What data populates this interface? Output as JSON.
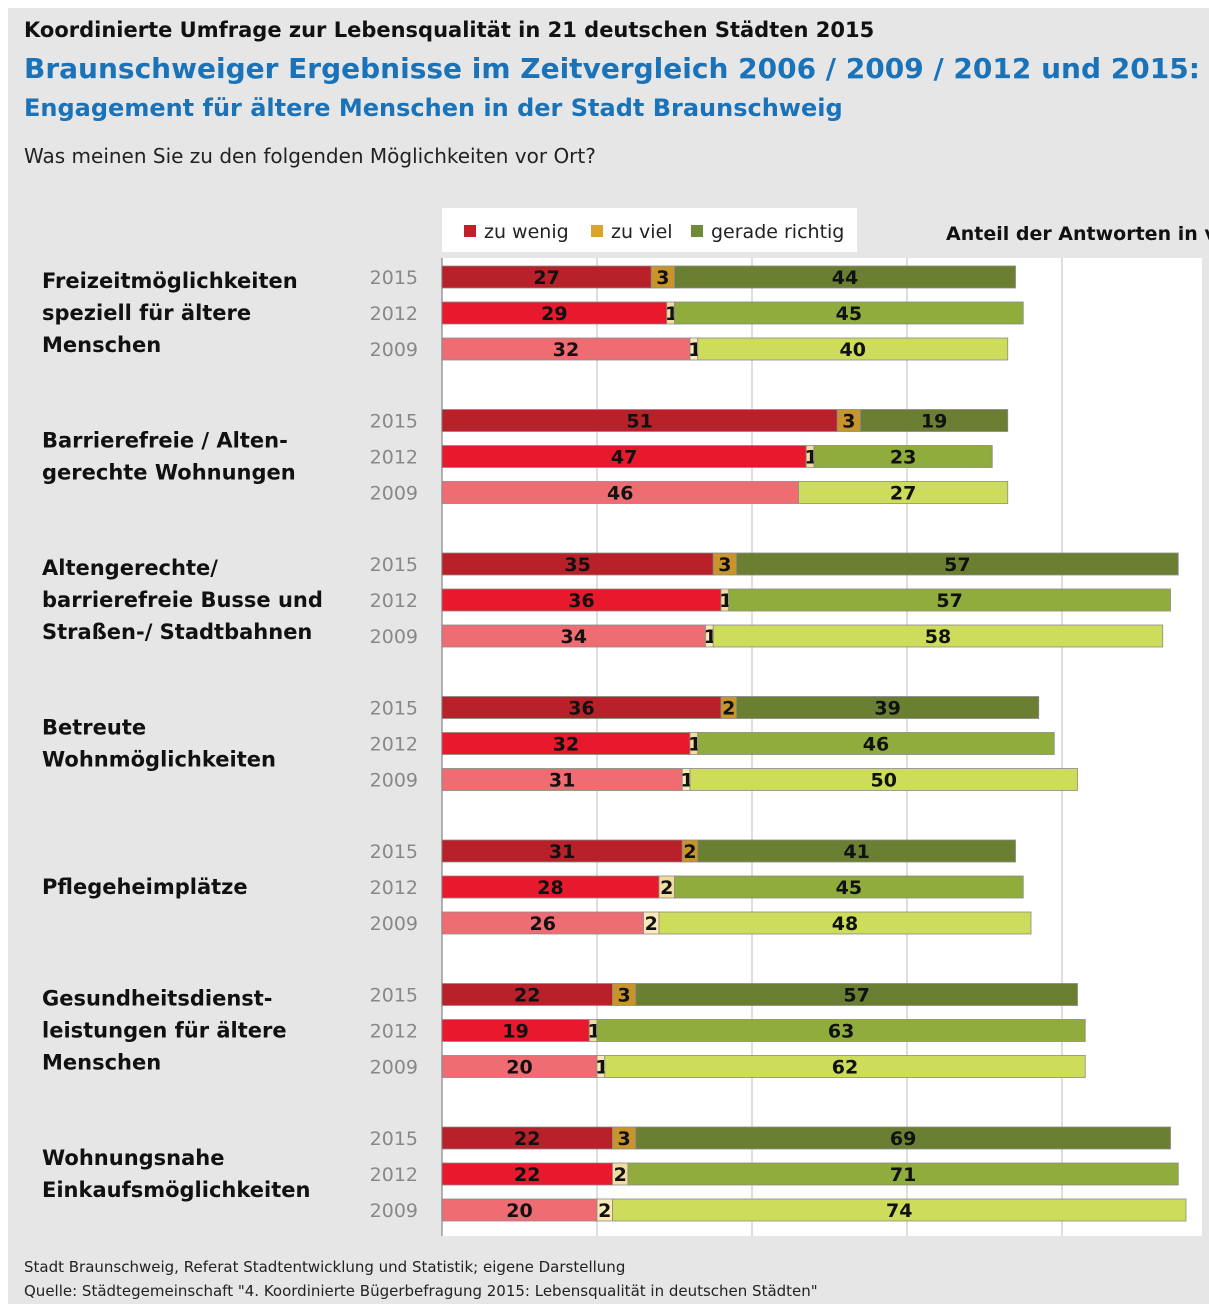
{
  "header": {
    "title": "Koordinierte Umfrage zur Lebensqualität in 21 deutschen Städten 2015",
    "subtitle": "Braunschweiger Ergebnisse im Zeitvergleich 2006 / 2009 / 2012 und 2015:",
    "subtitle2": "Engagement für ältere Menschen in der Stadt Braunschweig",
    "question": "Was meinen Sie zu den folgenden Möglichkeiten vor Ort?"
  },
  "footer": {
    "line1": "Stadt Braunschweig, Referat Stadtentwicklung und Statistik; eigene Darstellung",
    "line2": "Quelle: Städtegemeinschaft \"4. Koordinierte Bügerbefragung 2015: Lebensqualität in deutschen Städten\""
  },
  "chart_data": {
    "type": "bar",
    "orientation": "horizontal",
    "stacked": true,
    "unit_label": "Anteil der Antworten in vH",
    "xlim": [
      0,
      100
    ],
    "grid": true,
    "legend_position": "top",
    "legend": [
      "zu wenig",
      "zu viel",
      "gerade richtig"
    ],
    "years": [
      "2015",
      "2012",
      "2009"
    ],
    "colors": {
      "zu_wenig": [
        "#b8202a",
        "#e8192c",
        "#ef6c72"
      ],
      "zu_viel": [
        "#c8952c",
        "#f3dca0",
        "#fde9b8"
      ],
      "gerade_richtig": [
        "#6b7f33",
        "#8fac3c",
        "#cddc5a"
      ],
      "legend": [
        "#c0202a",
        "#d9a32e",
        "#6f8a38"
      ]
    },
    "groups": [
      {
        "label": [
          "Freizeitmöglichkeiten",
          "speziell für ältere",
          "Menschen"
        ],
        "zu_wenig": [
          27,
          29,
          32
        ],
        "zu_viel": [
          3,
          1,
          1
        ],
        "gerade_richtig": [
          44,
          45,
          40
        ]
      },
      {
        "label": [
          "Barrierefreie / Alten-",
          "gerechte Wohnungen"
        ],
        "zu_wenig": [
          51,
          47,
          46
        ],
        "zu_viel": [
          3,
          1,
          null
        ],
        "gerade_richtig": [
          19,
          23,
          27
        ]
      },
      {
        "label": [
          "Altengerechte/",
          "barrierefreie Busse und",
          "Straßen-/ Stadtbahnen"
        ],
        "zu_wenig": [
          35,
          36,
          34
        ],
        "zu_viel": [
          3,
          1,
          1
        ],
        "gerade_richtig": [
          57,
          57,
          58
        ]
      },
      {
        "label": [
          "Betreute",
          "Wohnmöglichkeiten"
        ],
        "zu_wenig": [
          36,
          32,
          31
        ],
        "zu_viel": [
          2,
          1,
          1
        ],
        "gerade_richtig": [
          39,
          46,
          50
        ]
      },
      {
        "label": [
          "Pflegeheimplätze"
        ],
        "zu_wenig": [
          31,
          28,
          26
        ],
        "zu_viel": [
          2,
          2,
          2
        ],
        "gerade_richtig": [
          41,
          45,
          48
        ]
      },
      {
        "label": [
          "Gesundheitsdienst-",
          "leistungen für ältere",
          "Menschen"
        ],
        "zu_wenig": [
          22,
          19,
          20
        ],
        "zu_viel": [
          3,
          1,
          1
        ],
        "gerade_richtig": [
          57,
          63,
          62
        ]
      },
      {
        "label": [
          "Wohnungsnahe",
          "Einkaufsmöglichkeiten"
        ],
        "zu_wenig": [
          22,
          22,
          20
        ],
        "zu_viel": [
          3,
          2,
          2
        ],
        "gerade_richtig": [
          69,
          71,
          74
        ]
      }
    ]
  }
}
